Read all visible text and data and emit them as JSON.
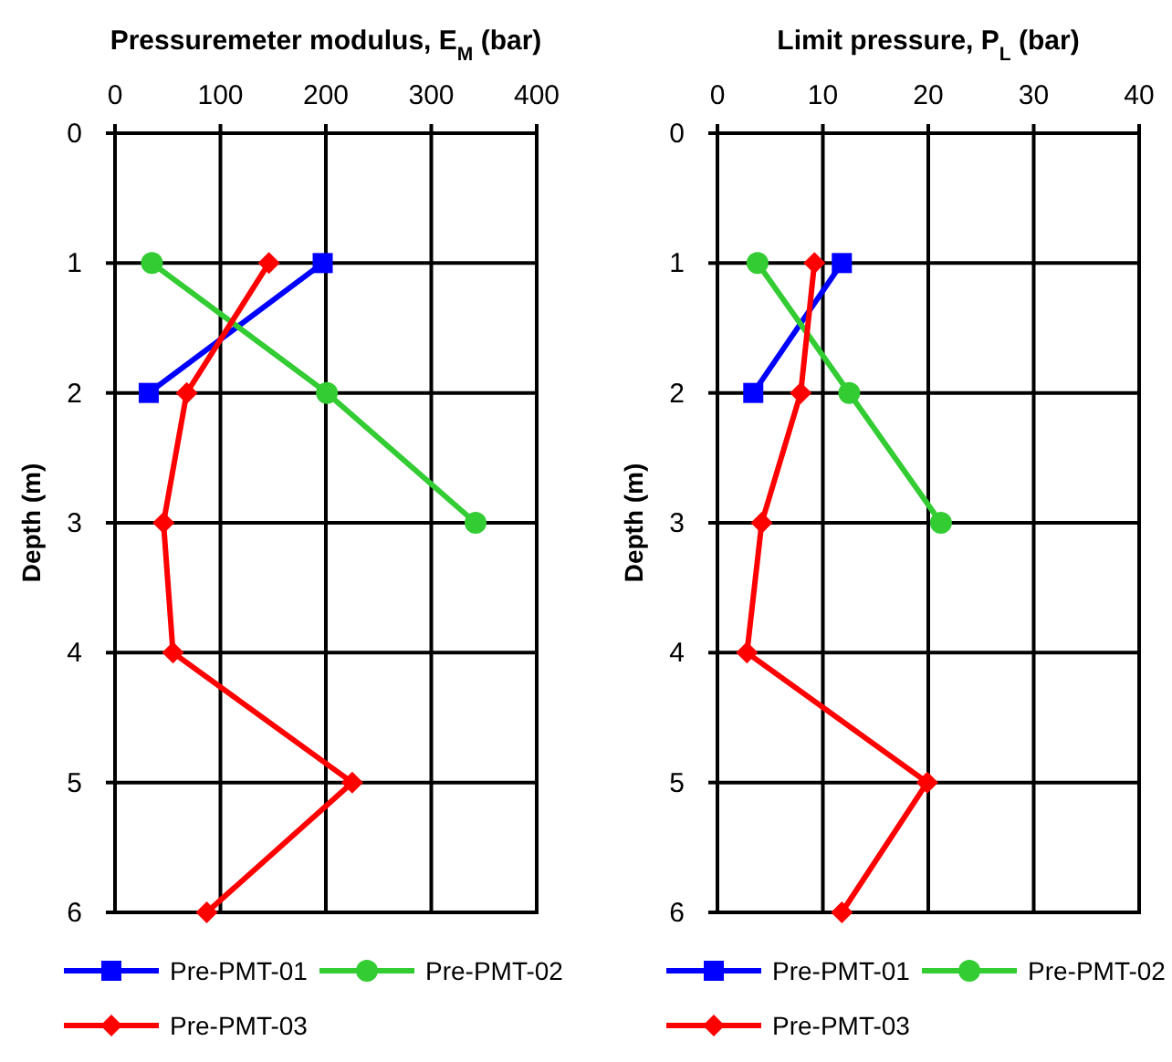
{
  "chart_data": [
    {
      "type": "line",
      "title": "Pressuremeter modulus, E$_{M}$ (bar)",
      "ylabel": "Depth (m)",
      "xlim": [
        0,
        400
      ],
      "xticks": [
        0,
        100,
        200,
        300,
        400
      ],
      "ylim": [
        6,
        0
      ],
      "yticks": [
        0,
        1,
        2,
        3,
        4,
        5,
        6
      ],
      "grid": true,
      "legend": "bottom",
      "series": [
        {
          "name": "Pre-PMT-01",
          "color": "#0000ff",
          "marker": "square",
          "x": [
            197,
            32
          ],
          "values": [
            1,
            2
          ]
        },
        {
          "name": "Pre-PMT-02",
          "color": "#33cc33",
          "marker": "circle",
          "x": [
            35,
            201,
            342
          ],
          "values": [
            1,
            2,
            3
          ]
        },
        {
          "name": "Pre-PMT-03",
          "color": "#ff0000",
          "marker": "diamond",
          "x": [
            146,
            68,
            46,
            55,
            225,
            87
          ],
          "values": [
            1,
            2,
            3,
            4,
            5,
            6
          ]
        }
      ]
    },
    {
      "type": "line",
      "title": "Limit pressure, P$_{L}$ (bar)",
      "ylabel": "Depth (m)",
      "xlim": [
        0,
        40
      ],
      "xticks": [
        0,
        10,
        20,
        30,
        40
      ],
      "ylim": [
        6,
        0
      ],
      "yticks": [
        0,
        1,
        2,
        3,
        4,
        5,
        6
      ],
      "grid": true,
      "legend": "bottom",
      "series": [
        {
          "name": "Pre-PMT-01",
          "color": "#0000ff",
          "marker": "square",
          "x": [
            11.8,
            3.4
          ],
          "values": [
            1,
            2
          ]
        },
        {
          "name": "Pre-PMT-02",
          "color": "#33cc33",
          "marker": "circle",
          "x": [
            3.8,
            12.5,
            21.2
          ],
          "values": [
            1,
            2,
            3
          ]
        },
        {
          "name": "Pre-PMT-03",
          "color": "#ff0000",
          "marker": "diamond",
          "x": [
            9.2,
            7.9,
            4.2,
            2.8,
            19.9,
            11.8
          ],
          "values": [
            1,
            2,
            3,
            4,
            5,
            6
          ]
        }
      ]
    }
  ]
}
